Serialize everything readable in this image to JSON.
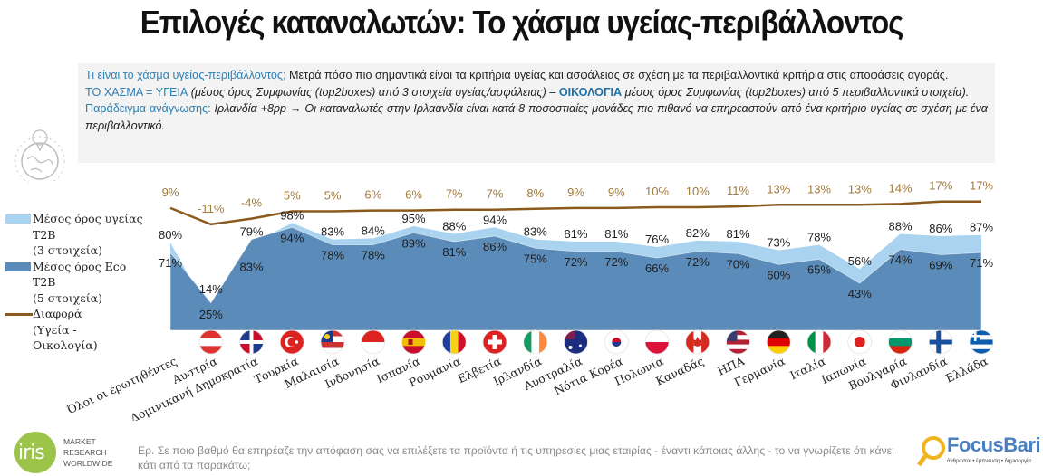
{
  "title": "Επιλογές καταναλωτών: Το χάσμα υγείας-περιβάλλοντος",
  "info": {
    "q1_label": "Τι είναι το χάσμα υγείας-περιβάλλοντος;",
    "q1_text": " Μετρά πόσο πιο σημαντικά είναι τα κριτήρια υγείας και ασφάλειας σε σχέση με τα περιβαλλοντικά κριτήρια στις αποφάσεις αγοράς.",
    "gap_label": "ΤΟ ΧΑΣΜΑ = ΥΓΕΙΑ",
    "gap_text": " (μέσος όρος Συμφωνίας (top2boxes) από 3 στοιχεία υγείας/ασφάλειας) – ",
    "eco_label": "ΟΙΚΟΛΟΓΙΑ",
    "eco_text": "  μέσος όρος Συμφωνίας (top2boxes) από 5 περιβαλλοντικά στοιχεία).",
    "ex_label": "Παράδειγμα ανάγνωσης:",
    "ex_text": " Ιρλανδία +8pp → Οι καταναλωτές στην Ιρλαανδία είναι κατά 8 ποσοστιαίες μονάδες πιο πιθανό να επηρεαστούν από ένα κριτήριο υγείας σε σχέση με ένα περιβαλλοντικό."
  },
  "legend": {
    "health": [
      "Μέσος όρος υγείας",
      "T2B",
      "(3 στοιχεία)"
    ],
    "eco": [
      "Μέσος όρος Eco",
      "T2B",
      "(5 στοιχεία)"
    ],
    "diff": [
      "Διαφορά",
      "(Υγεία -",
      "Οικολογία)"
    ]
  },
  "colors": {
    "health": "#a9d3ee",
    "eco": "#5b8bb8",
    "diff": "#8a5a1c",
    "diff_label": "#a07a3c"
  },
  "chart_data": {
    "type": "area",
    "title": "Επιλογές καταναλωτών: Το χάσμα υγείας-περιβάλλοντος",
    "xlabel": "",
    "ylabel": "",
    "ylim": [
      0,
      100
    ],
    "grid": false,
    "legend_position": "left",
    "categories": [
      "Όλοι οι ερωτηθέντες",
      "Αυστρία",
      "Δομινικανή Δημοκρατία",
      "Τουρκία",
      "Μαλαισία",
      "Ινδονησία",
      "Ισπανία",
      "Ρουμανία",
      "Ελβετία",
      "Ιρλανδία",
      "Αυστραλία",
      "Νότια Κορέα",
      "Πολωνία",
      "Καναδάς",
      "ΗΠΑ",
      "Γερμανία",
      "Ιταλία",
      "Ιαπωνία",
      "Βουλγαρία",
      "Φινλανδία",
      "Ελλάδα"
    ],
    "flags": [
      "none",
      "austria-flag-icon",
      "dominican-republic-flag-icon",
      "turkey-flag-icon",
      "malaysia-flag-icon",
      "indonesia-flag-icon",
      "spain-flag-icon",
      "romania-flag-icon",
      "switzerland-flag-icon",
      "ireland-flag-icon",
      "australia-flag-icon",
      "south-korea-flag-icon",
      "poland-flag-icon",
      "canada-flag-icon",
      "usa-flag-icon",
      "germany-flag-icon",
      "italy-flag-icon",
      "japan-flag-icon",
      "bulgaria-flag-icon",
      "finland-flag-icon",
      "greece-flag-icon"
    ],
    "series": [
      {
        "name": "Μέσος όρος υγείας T2B (3 στοιχεία)",
        "type": "area",
        "values": [
          80,
          14,
          79,
          98,
          83,
          84,
          95,
          88,
          94,
          83,
          81,
          81,
          76,
          82,
          81,
          73,
          78,
          56,
          88,
          86,
          87
        ]
      },
      {
        "name": "Μέσος όρος Eco T2B (5 στοιχεία)",
        "type": "area",
        "values": [
          71,
          25,
          83,
          94,
          78,
          78,
          89,
          81,
          86,
          75,
          72,
          72,
          66,
          72,
          70,
          60,
          65,
          43,
          74,
          69,
          71
        ]
      },
      {
        "name": "Διαφορά (Υγεία - Οικολογία)",
        "type": "line",
        "values": [
          9,
          -11,
          -4,
          5,
          5,
          6,
          6,
          7,
          7,
          8,
          9,
          9,
          10,
          10,
          11,
          13,
          13,
          13,
          14,
          17,
          17
        ]
      }
    ]
  },
  "footer": {
    "question": "Ερ. Σε ποιο βαθμό θα επηρέαζε την απόφαση σας να επιλέξετε τα προϊόντα ή τις υπηρεσίες μιας εταιρίας - έναντι κάποιας άλλης - το να γνωρίζετε ότι κάνει κάτι από τα παρακάτω;",
    "iris_logo": "iris",
    "iris_text": [
      "MARKET",
      "RESEARCH",
      "WORLDWIDE"
    ],
    "focus_name": "FocusBari",
    "focus_tag": "άνθρωποι • έμπνευση • δημιουργία"
  }
}
